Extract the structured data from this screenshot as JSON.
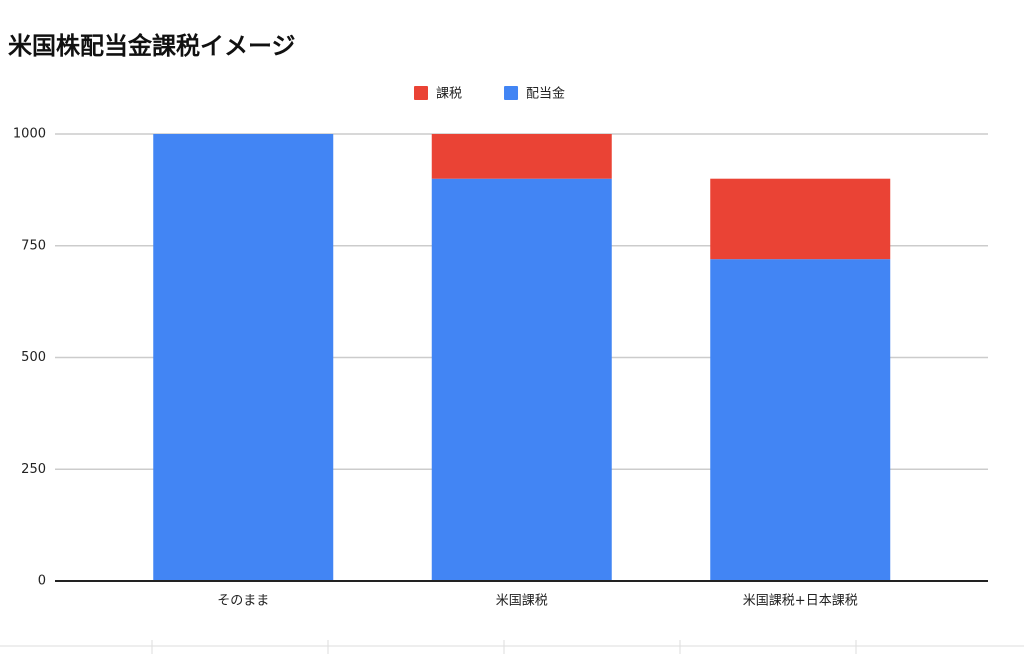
{
  "chart_data": {
    "type": "stacked-bar",
    "title": "米国株配当金課税イメージ",
    "categories": [
      "そのまま",
      "米国課税",
      "米国課税+日本課税"
    ],
    "series": [
      {
        "name": "課税",
        "color": "#ea4335",
        "values": [
          0,
          100,
          180
        ]
      },
      {
        "name": "配当金",
        "color": "#4285f4",
        "values": [
          1000,
          900,
          720
        ]
      }
    ],
    "ylim": [
      0,
      1000
    ],
    "yticks": [
      0,
      250,
      500,
      750,
      1000
    ],
    "grid": true,
    "legend": "top"
  }
}
